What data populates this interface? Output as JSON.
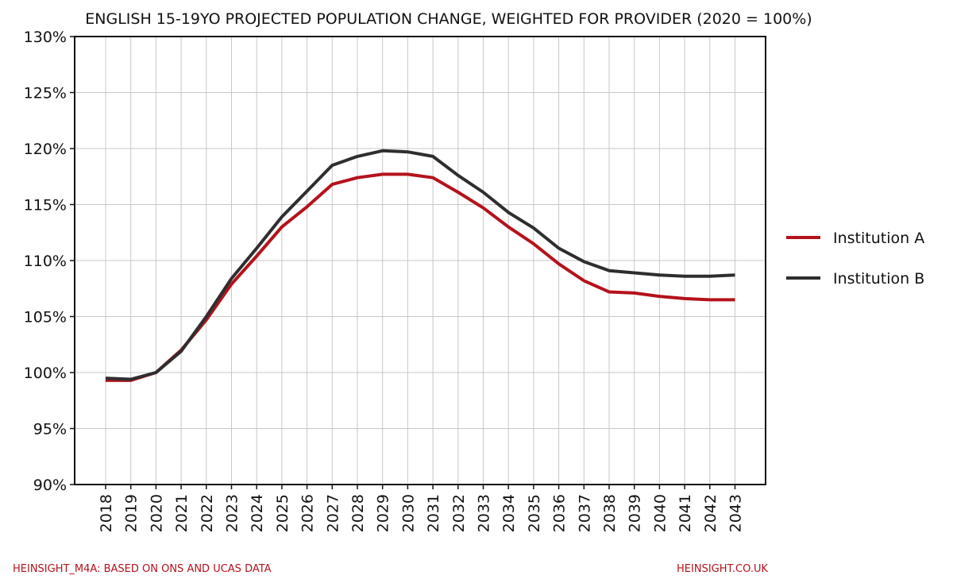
{
  "chart_data": {
    "type": "line",
    "title": "ENGLISH 15-19YO PROJECTED POPULATION CHANGE, WEIGHTED FOR PROVIDER (2020 = 100%)",
    "xlabel": "",
    "ylabel": "",
    "x": [
      "2018",
      "2019",
      "2020",
      "2021",
      "2022",
      "2023",
      "2024",
      "2025",
      "2026",
      "2027",
      "2028",
      "2029",
      "2030",
      "2031",
      "2032",
      "2033",
      "2034",
      "2035",
      "2036",
      "2037",
      "2038",
      "2039",
      "2040",
      "2041",
      "2042",
      "2043"
    ],
    "ylim": [
      90,
      130
    ],
    "yticks": [
      90,
      95,
      100,
      105,
      110,
      115,
      120,
      125,
      130
    ],
    "ytick_labels": [
      "90%",
      "95%",
      "100%",
      "105%",
      "110%",
      "115%",
      "120%",
      "125%",
      "130%"
    ],
    "grid": true,
    "legend_position": "right",
    "series": [
      {
        "name": "Institution A",
        "color": "#b5121b",
        "values": [
          99.3,
          99.3,
          100.0,
          102.0,
          104.7,
          107.9,
          110.4,
          113.0,
          114.8,
          116.8,
          117.4,
          117.7,
          117.7,
          117.4,
          116.1,
          114.7,
          113.0,
          111.5,
          109.7,
          108.2,
          107.2,
          107.1,
          106.8,
          106.6,
          106.5,
          106.5
        ]
      },
      {
        "name": "Institution B",
        "color": "#2e2e2e",
        "values": [
          99.5,
          99.4,
          100.0,
          101.9,
          105.0,
          108.4,
          111.1,
          113.9,
          116.2,
          118.5,
          119.3,
          119.8,
          119.7,
          119.3,
          117.6,
          116.1,
          114.3,
          112.9,
          111.1,
          109.9,
          109.1,
          108.9,
          108.7,
          108.6,
          108.6,
          108.7
        ]
      }
    ]
  },
  "footer": {
    "left": "HEINSIGHT_M4A: BASED ON ONS AND UCAS DATA",
    "right": "HEINSIGHT.CO.UK",
    "color": "#b5121b"
  }
}
